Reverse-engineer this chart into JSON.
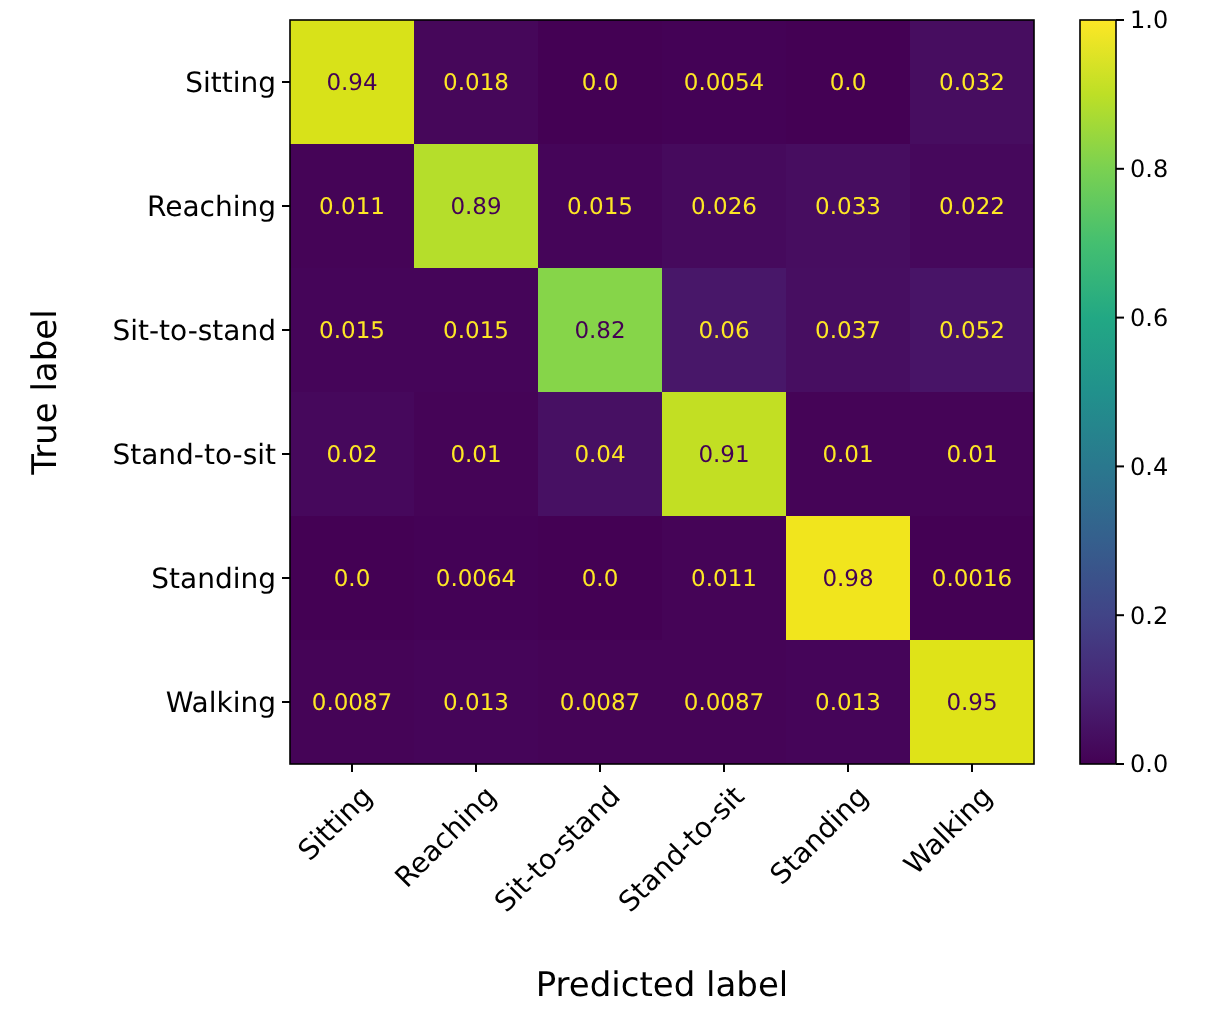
{
  "chart_data": {
    "type": "heatmap",
    "xlabel": "Predicted label",
    "ylabel": "True label",
    "categories": [
      "Sitting",
      "Reaching",
      "Sit-to-stand",
      "Stand-to-sit",
      "Standing",
      "Walking"
    ],
    "y_categories": [
      "Sitting",
      "Reaching",
      "Sit-to-stand",
      "Stand-to-sit",
      "Standing",
      "Walking"
    ],
    "cells": [
      [
        0.94,
        0.018,
        0,
        0.0054,
        0,
        0.032
      ],
      [
        0.011,
        0.89,
        0.015,
        0.026,
        0.033,
        0.022
      ],
      [
        0.015,
        0.015,
        0.82,
        0.06,
        0.037,
        0.052
      ],
      [
        0.02,
        0.01,
        0.04,
        0.91,
        0.01,
        0.01
      ],
      [
        0,
        0.0064,
        0,
        0.011,
        0.98,
        0.0016
      ],
      [
        0.0087,
        0.013,
        0.0087,
        0.0087,
        0.013,
        0.95
      ]
    ],
    "cell_labels": [
      [
        "0.94",
        "0.018",
        "0.0",
        "0.0054",
        "0.0",
        "0.032"
      ],
      [
        "0.011",
        "0.89",
        "0.015",
        "0.026",
        "0.033",
        "0.022"
      ],
      [
        "0.015",
        "0.015",
        "0.82",
        "0.06",
        "0.037",
        "0.052"
      ],
      [
        "0.02",
        "0.01",
        "0.04",
        "0.91",
        "0.01",
        "0.01"
      ],
      [
        "0.0",
        "0.0064",
        "0.0",
        "0.011",
        "0.98",
        "0.0016"
      ],
      [
        "0.0087",
        "0.013",
        "0.0087",
        "0.0087",
        "0.013",
        "0.95"
      ]
    ],
    "clim": [
      0,
      1
    ],
    "cticks": [
      {
        "value": 0,
        "label": "0.0"
      },
      {
        "value": 0.2,
        "label": "0.2"
      },
      {
        "value": 0.4,
        "label": "0.4"
      },
      {
        "value": 0.6,
        "label": "0.6"
      },
      {
        "value": 0.8,
        "label": "0.8"
      },
      {
        "value": 1,
        "label": "1.0"
      }
    ]
  }
}
